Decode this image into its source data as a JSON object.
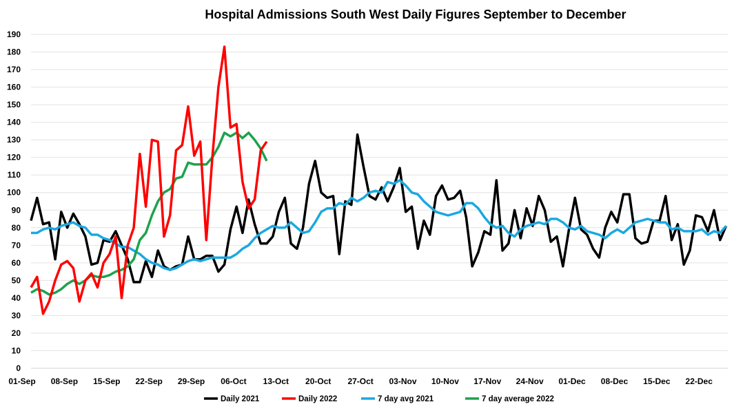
{
  "chart_data": {
    "type": "line",
    "title": "Hospital Admissions South West Daily Figures September to December",
    "xlabel": "",
    "ylabel": "",
    "ylim": [
      0,
      190
    ],
    "ytick_step": 10,
    "grid": true,
    "legend_position": "bottom",
    "x_start": "01-Sep",
    "x_ticks": [
      "01-Sep",
      "08-Sep",
      "15-Sep",
      "22-Sep",
      "29-Sep",
      "06-Oct",
      "13-Oct",
      "20-Oct",
      "27-Oct",
      "03-Nov",
      "10-Nov",
      "17-Nov",
      "24-Nov",
      "01-Dec",
      "08-Dec",
      "15-Dec",
      "22-Dec"
    ],
    "y_ticks": [
      "0",
      "10",
      "20",
      "30",
      "40",
      "50",
      "60",
      "70",
      "80",
      "90",
      "100",
      "110",
      "120",
      "130",
      "140",
      "150",
      "160",
      "170",
      "180",
      "190"
    ],
    "series": [
      {
        "name": "Daily 2021",
        "color": "#000000",
        "values": [
          84,
          97,
          82,
          83,
          62,
          89,
          80,
          88,
          82,
          75,
          59,
          60,
          73,
          72,
          78,
          70,
          62,
          49,
          49,
          61,
          52,
          67,
          58,
          56,
          58,
          59,
          75,
          62,
          62,
          64,
          64,
          55,
          59,
          79,
          92,
          77,
          96,
          82,
          71,
          71,
          75,
          89,
          97,
          71,
          68,
          80,
          105,
          118,
          100,
          97,
          98,
          65,
          95,
          93,
          133,
          115,
          98,
          96,
          103,
          95,
          103,
          114,
          89,
          92,
          68,
          84,
          76,
          98,
          104,
          96,
          97,
          101,
          86,
          58,
          66,
          78,
          76,
          107,
          67,
          71,
          90,
          74,
          91,
          81,
          98,
          90,
          72,
          75,
          58,
          79,
          97,
          79,
          76,
          68,
          63,
          80,
          89,
          83,
          99,
          99,
          74,
          71,
          72,
          84,
          84,
          98,
          73,
          82,
          59,
          67,
          87,
          86,
          78,
          90,
          73,
          81
        ]
      },
      {
        "name": "Daily 2022",
        "color": "#ff0000",
        "values": [
          46,
          52,
          31,
          38,
          50,
          59,
          61,
          57,
          38,
          50,
          54,
          46,
          60,
          65,
          75,
          40,
          70,
          80,
          122,
          92,
          130,
          129,
          75,
          87,
          124,
          127,
          149,
          121,
          129,
          73,
          120,
          160,
          183,
          137,
          139,
          106,
          91,
          96,
          124,
          129
        ]
      },
      {
        "name": "7 day avg 2021",
        "color": "#1ba8e0",
        "values": [
          77,
          77,
          79,
          80,
          79,
          81,
          82,
          83,
          81,
          80,
          76,
          76,
          74,
          73,
          71,
          69,
          69,
          67,
          65,
          62,
          60,
          59,
          57,
          56,
          57,
          59,
          61,
          62,
          61,
          62,
          63,
          63,
          63,
          63,
          65,
          68,
          70,
          74,
          77,
          79,
          81,
          80,
          80,
          83,
          80,
          77,
          78,
          83,
          89,
          91,
          91,
          94,
          93,
          97,
          95,
          97,
          100,
          101,
          100,
          106,
          105,
          107,
          104,
          100,
          99,
          95,
          92,
          89,
          88,
          87,
          88,
          89,
          94,
          94,
          91,
          86,
          82,
          80,
          81,
          77,
          75,
          79,
          81,
          82,
          83,
          82,
          85,
          85,
          83,
          80,
          79,
          81,
          78,
          77,
          76,
          74,
          77,
          79,
          77,
          80,
          83,
          84,
          85,
          84,
          83,
          83,
          79,
          80,
          78,
          78,
          78,
          79,
          76,
          78,
          77,
          81
        ]
      },
      {
        "name": "7 day average 2022",
        "color": "#1ea24c",
        "values": [
          43,
          45,
          44,
          42,
          43,
          45,
          48,
          50,
          48,
          50,
          53,
          52,
          52,
          53,
          55,
          56,
          58,
          62,
          73,
          77,
          87,
          95,
          100,
          102,
          108,
          109,
          117,
          116,
          116,
          116,
          120,
          126,
          134,
          132,
          134,
          131,
          134,
          130,
          125,
          118
        ]
      }
    ]
  }
}
